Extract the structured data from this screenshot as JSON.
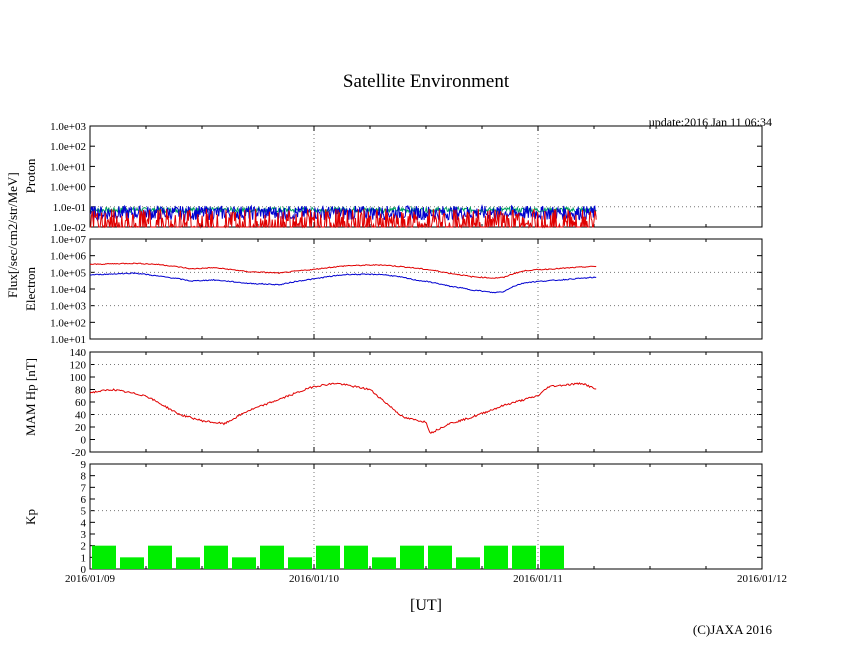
{
  "page": {
    "title": "Satellite Environment",
    "update": "update:2016 Jan 11 06:34",
    "copyright": "(C)JAXA 2016",
    "xlabel": "[UT]"
  },
  "colors": {
    "red": "#e00000",
    "blue": "#0000d0",
    "green": "#00a060",
    "kp_bar": "#00ee00",
    "grid": "#777777"
  },
  "chart_data": [
    {
      "type": "line",
      "panel": "proton",
      "title": "Proton",
      "ylabel": "Flux[/sec/cm2/str/MeV]",
      "yscale": "log",
      "ylim": [
        0.01,
        1000
      ],
      "yticks": [
        "1.0e-02",
        "1.0e-01",
        "1.0e+00",
        "1.0e+01",
        "1.0e+02",
        "1.0e+03"
      ],
      "x_ticks": [
        "2016/01/09",
        "2016/01/10",
        "2016/01/11",
        "2016/01/12"
      ],
      "xlim_days": [
        0,
        3
      ],
      "data_end_day": 2.26,
      "series": [
        {
          "name": "green",
          "color": "green",
          "x": [
            0,
            0.5,
            1,
            1.5,
            2,
            2.26
          ],
          "y": [
            0.07,
            0.07,
            0.07,
            0.07,
            0.07,
            0.07
          ]
        },
        {
          "name": "blue",
          "color": "blue",
          "x": [
            0,
            0.5,
            1,
            1.5,
            2,
            2.26
          ],
          "y": [
            0.05,
            0.05,
            0.05,
            0.05,
            0.05,
            0.05
          ]
        },
        {
          "name": "red",
          "color": "red",
          "x": [
            0,
            0.5,
            1,
            1.5,
            2,
            2.26
          ],
          "y": [
            0.02,
            0.02,
            0.02,
            0.02,
            0.02,
            0.02
          ]
        }
      ]
    },
    {
      "type": "line",
      "panel": "electron",
      "title": "Electron",
      "yscale": "log",
      "ylim": [
        10,
        10000000
      ],
      "yticks": [
        "1.0e+01",
        "1.0e+02",
        "1.0e+03",
        "1.0e+04",
        "1.0e+05",
        "1.0e+06",
        "1.0e+07"
      ],
      "series": [
        {
          "name": "red",
          "color": "red",
          "x": [
            0,
            0.2,
            0.3,
            0.45,
            0.55,
            0.7,
            0.85,
            1.0,
            1.15,
            1.3,
            1.45,
            1.6,
            1.7,
            1.8,
            1.85,
            1.95,
            2.1,
            2.26
          ],
          "y": [
            300000,
            350000,
            300000,
            160000,
            190000,
            110000,
            90000,
            150000,
            250000,
            280000,
            180000,
            90000,
            55000,
            45000,
            50000,
            130000,
            170000,
            230000
          ]
        },
        {
          "name": "blue",
          "color": "blue",
          "x": [
            0,
            0.2,
            0.3,
            0.45,
            0.55,
            0.7,
            0.85,
            1.0,
            1.15,
            1.3,
            1.45,
            1.6,
            1.7,
            1.8,
            1.85,
            1.95,
            2.1,
            2.26
          ],
          "y": [
            70000,
            90000,
            60000,
            30000,
            35000,
            22000,
            18000,
            40000,
            75000,
            75000,
            35000,
            15000,
            9000,
            6000,
            7000,
            25000,
            35000,
            50000
          ]
        }
      ]
    },
    {
      "type": "line",
      "panel": "mam",
      "ylabel": "MAM Hp [nT]",
      "ylim": [
        -20,
        140
      ],
      "yticks": [
        "-20",
        "0",
        "20",
        "40",
        "60",
        "80",
        "100",
        "120",
        "140"
      ],
      "series": [
        {
          "name": "Hp",
          "color": "red",
          "x": [
            0,
            0.1,
            0.25,
            0.4,
            0.5,
            0.6,
            0.7,
            0.85,
            1.0,
            1.1,
            1.25,
            1.4,
            1.5,
            1.52,
            1.6,
            1.7,
            1.85,
            2.0,
            2.05,
            2.2,
            2.26
          ],
          "y": [
            75,
            80,
            70,
            40,
            30,
            25,
            45,
            65,
            85,
            90,
            80,
            35,
            28,
            10,
            25,
            35,
            55,
            70,
            85,
            90,
            80
          ]
        }
      ]
    },
    {
      "type": "bar",
      "panel": "kp",
      "ylabel": "Kp",
      "ylim": [
        0,
        9
      ],
      "yticks": [
        "0",
        "1",
        "2",
        "3",
        "4",
        "5",
        "6",
        "7",
        "8",
        "9"
      ],
      "bin_days": 0.125,
      "values": [
        2,
        1,
        2,
        1,
        2,
        1,
        2,
        1,
        2,
        2,
        1,
        2,
        2,
        1,
        2,
        2,
        2
      ]
    }
  ]
}
